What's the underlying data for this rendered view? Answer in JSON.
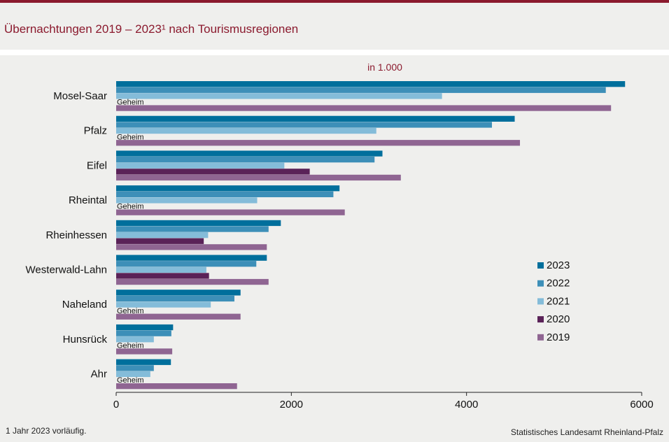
{
  "header": {
    "title": "Übernachtungen 2019 – 2023¹ nach Tourismusregionen"
  },
  "footer": {
    "footnote": "1 Jahr  2023  vorläufig.",
    "source": "Statistisches Landesamt  Rheinland-Pfalz"
  },
  "colors": {
    "2023": "#006f9c",
    "2022": "#3d8fb8",
    "2021": "#84bcd9",
    "2020": "#5a2258",
    "2019": "#8f6592",
    "title": "#8b1a2e"
  },
  "chart_data": {
    "type": "bar",
    "orientation": "horizontal",
    "unit_label": "in 1.000",
    "categories": [
      "Mosel-Saar",
      "Pfalz",
      "Eifel",
      "Rheintal",
      "Rheinhessen",
      "Westerwald-Lahn",
      "Naheland",
      "Hunsrück",
      "Ahr"
    ],
    "series": [
      {
        "name": "2023",
        "values": [
          5810,
          4550,
          3040,
          2550,
          1880,
          1720,
          1420,
          650,
          625
        ]
      },
      {
        "name": "2022",
        "values": [
          5590,
          4290,
          2950,
          2480,
          1740,
          1600,
          1350,
          630,
          430
        ]
      },
      {
        "name": "2021",
        "values": [
          3720,
          2970,
          1920,
          1610,
          1050,
          1030,
          1080,
          430,
          390
        ]
      },
      {
        "name": "2020",
        "values": [
          null,
          null,
          2210,
          null,
          1000,
          1060,
          null,
          null,
          null
        ]
      },
      {
        "name": "2019",
        "values": [
          5650,
          4610,
          3250,
          2610,
          1720,
          1740,
          1420,
          640,
          1380
        ]
      }
    ],
    "missing_label": "Geheim",
    "xlim": [
      0,
      6000
    ],
    "xticks": [
      "0",
      "2000",
      "4000",
      "6000"
    ],
    "legend_position": "right",
    "grid": false
  }
}
